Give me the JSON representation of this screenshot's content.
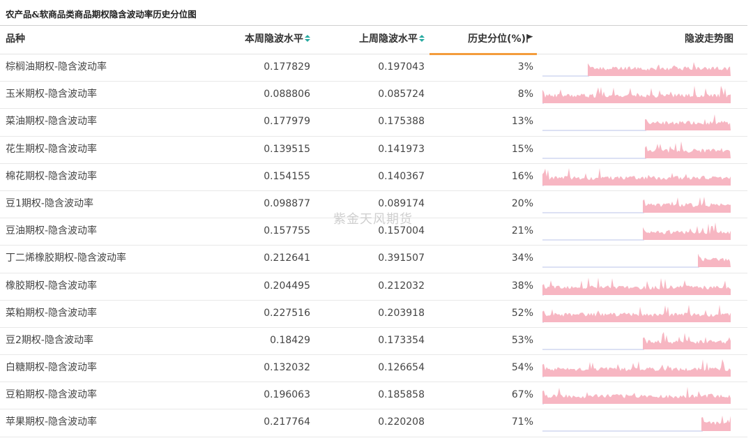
{
  "title": "农产品&软商品类商品期权隐含波动率历史分位图",
  "watermark": "紫金天风期货",
  "columns": {
    "name": "品种",
    "current": "本周隐波水平",
    "previous": "上周隐波水平",
    "percentile": "历史分位(%)",
    "trend": "隐波走势图"
  },
  "colors": {
    "sort_icon": "#27a9a0",
    "active_tab_underline": "#f39c3c",
    "spark_fill": "#f7b6c2",
    "spark_baseline": "#b9c3e8"
  },
  "rows": [
    {
      "name": "棕榈油期权-隐含波动率",
      "current": "0.177829",
      "previous": "0.197043",
      "pct": "3%",
      "spark_start": 0.24
    },
    {
      "name": "玉米期权-隐含波动率",
      "current": "0.088806",
      "previous": "0.085724",
      "pct": "8%",
      "spark_start": 0.0
    },
    {
      "name": "菜油期权-隐含波动率",
      "current": "0.177979",
      "previous": "0.175388",
      "pct": "13%",
      "spark_start": 0.54
    },
    {
      "name": "花生期权-隐含波动率",
      "current": "0.139515",
      "previous": "0.141973",
      "pct": "15%",
      "spark_start": 0.54
    },
    {
      "name": "棉花期权-隐含波动率",
      "current": "0.154155",
      "previous": "0.140367",
      "pct": "16%",
      "spark_start": 0.0
    },
    {
      "name": "豆1期权-隐含波动率",
      "current": "0.098877",
      "previous": "0.089174",
      "pct": "20%",
      "spark_start": 0.53
    },
    {
      "name": "豆油期权-隐含波动率",
      "current": "0.157755",
      "previous": "0.157004",
      "pct": "21%",
      "spark_start": 0.53
    },
    {
      "name": "丁二烯橡胶期权-隐含波动率",
      "current": "0.212641",
      "previous": "0.391507",
      "pct": "34%",
      "spark_start": 0.82
    },
    {
      "name": "橡胶期权-隐含波动率",
      "current": "0.204495",
      "previous": "0.212032",
      "pct": "38%",
      "spark_start": 0.0
    },
    {
      "name": "菜粕期权-隐含波动率",
      "current": "0.227516",
      "previous": "0.203918",
      "pct": "52%",
      "spark_start": 0.0
    },
    {
      "name": "豆2期权-隐含波动率",
      "current": "0.18429",
      "previous": "0.173354",
      "pct": "53%",
      "spark_start": 0.53
    },
    {
      "name": "白糖期权-隐含波动率",
      "current": "0.132032",
      "previous": "0.126654",
      "pct": "54%",
      "spark_start": 0.0
    },
    {
      "name": "豆粕期权-隐含波动率",
      "current": "0.196063",
      "previous": "0.185858",
      "pct": "67%",
      "spark_start": 0.0
    },
    {
      "name": "苹果期权-隐含波动率",
      "current": "0.217764",
      "previous": "0.220208",
      "pct": "71%",
      "spark_start": 0.84
    }
  ]
}
